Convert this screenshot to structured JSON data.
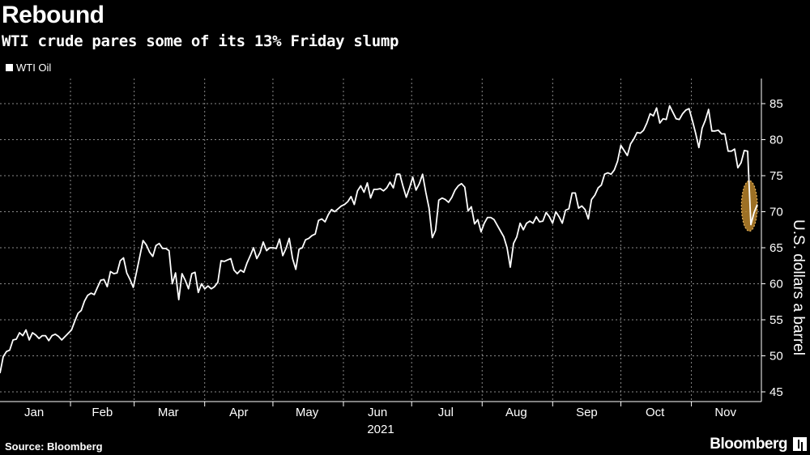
{
  "header": {
    "title": "Rebound",
    "subtitle": "WTI crude pares some of its 13% Friday slump"
  },
  "footer": {
    "source": "Source: Bloomberg",
    "brand": "Bloomberg"
  },
  "colors": {
    "background": "#000000",
    "line": "#ffffff",
    "grid": "#8a8a8a",
    "highlight": "#b8842c"
  },
  "chart_data": {
    "type": "line",
    "ylabel": "U.S. dollars a barrel",
    "year_label": "2021",
    "ylim": [
      44,
      88
    ],
    "yticks": [
      45,
      50,
      55,
      60,
      65,
      70,
      75,
      80,
      85
    ],
    "xlim": [
      0,
      333
    ],
    "month_ticks": [
      {
        "label": "Jan",
        "day": 15
      },
      {
        "label": "Feb",
        "day": 45
      },
      {
        "label": "Mar",
        "day": 74
      },
      {
        "label": "Apr",
        "day": 105
      },
      {
        "label": "May",
        "day": 135
      },
      {
        "label": "Jun",
        "day": 166
      },
      {
        "label": "Jul",
        "day": 196
      },
      {
        "label": "Aug",
        "day": 227
      },
      {
        "label": "Sep",
        "day": 258
      },
      {
        "label": "Oct",
        "day": 288
      },
      {
        "label": "Nov",
        "day": 319
      }
    ],
    "month_boundaries": [
      31,
      59,
      90,
      120,
      151,
      181,
      212,
      243,
      273,
      304
    ],
    "legend": [
      {
        "name": "WTI Oil"
      }
    ],
    "highlight": {
      "day_start": 326,
      "day_end": 333,
      "y_low": 67.3,
      "y_high": 74.3
    },
    "series": [
      {
        "name": "WTI Oil",
        "points": [
          [
            0,
            47.6
          ],
          [
            1,
            49.9
          ],
          [
            2,
            50.6
          ],
          [
            3,
            50.8
          ],
          [
            4,
            52.2
          ],
          [
            5,
            52.3
          ],
          [
            6,
            53.2
          ],
          [
            7,
            52.8
          ],
          [
            8,
            53.6
          ],
          [
            9,
            52.2
          ],
          [
            10,
            53.2
          ],
          [
            11,
            52.9
          ],
          [
            12,
            52.4
          ],
          [
            13,
            52.8
          ],
          [
            14,
            52.8
          ],
          [
            15,
            52.1
          ],
          [
            16,
            52.8
          ],
          [
            17,
            53.0
          ],
          [
            18,
            52.7
          ],
          [
            19,
            52.2
          ],
          [
            22,
            53.6
          ],
          [
            23,
            54.8
          ],
          [
            24,
            55.9
          ],
          [
            25,
            56.3
          ],
          [
            26,
            57.6
          ],
          [
            27,
            58.4
          ],
          [
            28,
            58.7
          ],
          [
            29,
            58.5
          ],
          [
            30,
            59.5
          ],
          [
            31,
            60.5
          ],
          [
            32,
            60.6
          ],
          [
            33,
            59.6
          ],
          [
            34,
            61.7
          ],
          [
            35,
            61.4
          ],
          [
            36,
            61.5
          ],
          [
            37,
            63.2
          ],
          [
            38,
            63.6
          ],
          [
            39,
            61.5
          ],
          [
            40,
            60.6
          ],
          [
            41,
            59.5
          ],
          [
            42,
            61.6
          ],
          [
            43,
            63.8
          ],
          [
            44,
            66.0
          ],
          [
            45,
            65.4
          ],
          [
            46,
            64.4
          ],
          [
            47,
            63.8
          ],
          [
            48,
            65.3
          ],
          [
            49,
            65.6
          ],
          [
            50,
            64.9
          ],
          [
            51,
            64.9
          ],
          [
            52,
            64.6
          ],
          [
            53,
            60.0
          ],
          [
            54,
            61.5
          ],
          [
            55,
            57.8
          ],
          [
            56,
            61.4
          ],
          [
            57,
            60.5
          ],
          [
            58,
            59.3
          ],
          [
            59,
            61.4
          ],
          [
            60,
            61.6
          ],
          [
            61,
            58.8
          ],
          [
            62,
            60.0
          ],
          [
            63,
            59.3
          ],
          [
            64,
            59.7
          ],
          [
            65,
            59.3
          ],
          [
            66,
            59.6
          ],
          [
            67,
            60.2
          ],
          [
            68,
            63.2
          ],
          [
            69,
            63.1
          ],
          [
            70,
            63.3
          ],
          [
            71,
            63.5
          ],
          [
            72,
            61.9
          ],
          [
            73,
            61.4
          ],
          [
            74,
            61.9
          ],
          [
            75,
            61.6
          ],
          [
            76,
            62.9
          ],
          [
            77,
            63.9
          ],
          [
            78,
            65.0
          ],
          [
            79,
            63.5
          ],
          [
            80,
            64.3
          ],
          [
            81,
            65.8
          ],
          [
            82,
            64.6
          ],
          [
            83,
            65.0
          ],
          [
            84,
            65.0
          ],
          [
            85,
            64.9
          ],
          [
            86,
            66.2
          ],
          [
            87,
            63.9
          ],
          [
            88,
            64.9
          ],
          [
            89,
            66.3
          ],
          [
            90,
            63.5
          ],
          [
            91,
            62.0
          ],
          [
            92,
            64.8
          ],
          [
            93,
            65.0
          ],
          [
            94,
            66.1
          ],
          [
            95,
            66.3
          ],
          [
            96,
            66.7
          ],
          [
            97,
            66.9
          ],
          [
            98,
            68.8
          ],
          [
            99,
            69.0
          ],
          [
            100,
            68.6
          ],
          [
            101,
            69.6
          ],
          [
            102,
            70.3
          ],
          [
            103,
            70.0
          ],
          [
            104,
            70.4
          ],
          [
            105,
            70.8
          ],
          [
            106,
            71.0
          ],
          [
            107,
            71.4
          ],
          [
            108,
            72.1
          ],
          [
            109,
            71.0
          ],
          [
            110,
            72.9
          ],
          [
            111,
            73.6
          ],
          [
            112,
            72.7
          ],
          [
            113,
            74.0
          ],
          [
            114,
            71.9
          ],
          [
            115,
            73.1
          ],
          [
            116,
            73.1
          ],
          [
            117,
            73.2
          ],
          [
            118,
            72.9
          ],
          [
            119,
            73.3
          ],
          [
            120,
            74.1
          ],
          [
            121,
            73.3
          ],
          [
            122,
            75.2
          ],
          [
            123,
            75.2
          ],
          [
            124,
            73.5
          ],
          [
            125,
            72.0
          ],
          [
            126,
            73.3
          ],
          [
            127,
            74.8
          ],
          [
            128,
            73.0
          ],
          [
            129,
            73.9
          ],
          [
            130,
            75.2
          ],
          [
            131,
            72.7
          ],
          [
            132,
            70.5
          ],
          [
            133,
            66.4
          ],
          [
            134,
            67.4
          ],
          [
            135,
            71.6
          ],
          [
            136,
            71.9
          ],
          [
            137,
            71.7
          ],
          [
            138,
            71.3
          ],
          [
            139,
            72.0
          ],
          [
            140,
            73.0
          ],
          [
            141,
            73.6
          ],
          [
            142,
            73.9
          ],
          [
            143,
            73.4
          ],
          [
            144,
            70.1
          ],
          [
            145,
            70.7
          ],
          [
            146,
            68.3
          ],
          [
            147,
            68.9
          ],
          [
            148,
            67.2
          ],
          [
            149,
            68.4
          ],
          [
            150,
            69.2
          ],
          [
            151,
            69.2
          ],
          [
            152,
            68.9
          ],
          [
            153,
            68.1
          ],
          [
            154,
            67.3
          ],
          [
            155,
            66.5
          ],
          [
            156,
            65.0
          ],
          [
            157,
            62.3
          ],
          [
            158,
            65.6
          ],
          [
            159,
            66.5
          ],
          [
            160,
            68.4
          ],
          [
            161,
            67.5
          ],
          [
            162,
            68.4
          ],
          [
            163,
            68.7
          ],
          [
            164,
            68.4
          ],
          [
            165,
            69.3
          ],
          [
            166,
            68.6
          ],
          [
            167,
            68.7
          ],
          [
            168,
            69.9
          ],
          [
            169,
            69.3
          ],
          [
            170,
            68.4
          ],
          [
            171,
            70.0
          ],
          [
            172,
            69.3
          ],
          [
            173,
            68.4
          ],
          [
            174,
            70.2
          ],
          [
            175,
            70.4
          ],
          [
            176,
            72.6
          ],
          [
            177,
            72.6
          ],
          [
            178,
            70.5
          ],
          [
            179,
            70.8
          ],
          [
            180,
            70.3
          ],
          [
            181,
            69.0
          ],
          [
            182,
            71.7
          ],
          [
            183,
            72.3
          ],
          [
            184,
            73.3
          ],
          [
            185,
            73.7
          ],
          [
            186,
            75.2
          ],
          [
            187,
            75.4
          ],
          [
            188,
            75.2
          ],
          [
            189,
            75.8
          ],
          [
            190,
            77.0
          ],
          [
            191,
            79.2
          ],
          [
            192,
            78.5
          ],
          [
            193,
            77.8
          ],
          [
            194,
            79.4
          ],
          [
            195,
            80.1
          ],
          [
            196,
            81.0
          ],
          [
            197,
            80.9
          ],
          [
            198,
            81.3
          ],
          [
            199,
            82.3
          ],
          [
            200,
            83.6
          ],
          [
            201,
            83.3
          ],
          [
            202,
            84.4
          ],
          [
            203,
            82.3
          ],
          [
            204,
            82.9
          ],
          [
            205,
            82.8
          ],
          [
            206,
            84.7
          ],
          [
            207,
            83.8
          ],
          [
            208,
            82.9
          ],
          [
            209,
            82.8
          ],
          [
            210,
            83.6
          ],
          [
            211,
            84.1
          ],
          [
            212,
            84.3
          ],
          [
            213,
            82.7
          ],
          [
            214,
            80.9
          ],
          [
            215,
            78.9
          ],
          [
            216,
            81.6
          ],
          [
            217,
            82.7
          ],
          [
            218,
            84.2
          ],
          [
            219,
            81.2
          ],
          [
            220,
            81.2
          ],
          [
            221,
            81.3
          ],
          [
            222,
            80.8
          ],
          [
            223,
            80.8
          ],
          [
            224,
            78.4
          ],
          [
            225,
            78.4
          ],
          [
            226,
            78.7
          ],
          [
            227,
            76.1
          ],
          [
            228,
            76.8
          ],
          [
            229,
            78.5
          ],
          [
            230,
            78.4
          ],
          [
            231,
            68.2
          ],
          [
            232,
            69.9
          ],
          [
            233,
            71.0
          ]
        ]
      }
    ]
  }
}
